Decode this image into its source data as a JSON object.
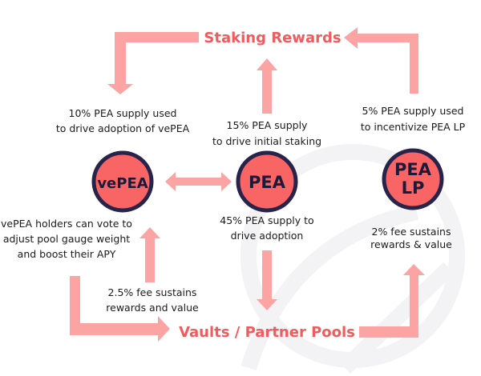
{
  "colors": {
    "arrow": "#fca4a4",
    "accent": "#f25a5c",
    "node_fill": "#f96464",
    "node_border": "#27234a",
    "watermark": "#f4f4f6"
  },
  "headings": {
    "top": "Staking Rewards",
    "bottom": "Vaults / Partner Pools"
  },
  "nodes": {
    "vepea": "vePEA",
    "pea": "PEA",
    "pealp_line1": "PEA",
    "pealp_line2": "LP"
  },
  "labels": {
    "vepea_supply": [
      "10% PEA supply used",
      "to drive adoption of vePEA"
    ],
    "pea_staking": [
      "15% PEA supply",
      "to drive initial staking"
    ],
    "lp_supply": [
      "5% PEA supply used",
      "to incentivize PEA LP"
    ],
    "vepea_holders": [
      "vePEA holders can vote to",
      "adjust pool gauge weight",
      "and boost their APY"
    ],
    "pea_adoption": [
      "45% PEA supply to",
      "drive adoption"
    ],
    "lp_fee": [
      "2% fee sustains",
      "rewards & value"
    ],
    "vepea_fee": [
      "2.5% fee sustains",
      "rewards and value"
    ]
  }
}
